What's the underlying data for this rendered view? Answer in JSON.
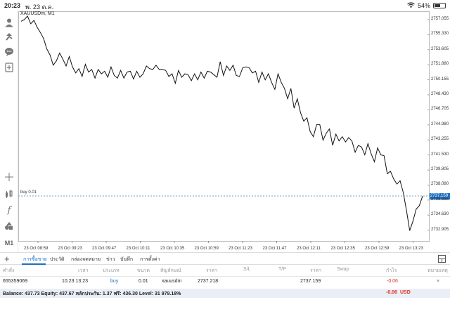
{
  "status_bar": {
    "time": "20:23",
    "date": "พ. 23 ต.ค.",
    "battery": "54%",
    "battery_level": 0.54
  },
  "chart": {
    "symbol": "XAUUSDm, M1",
    "position_label": "buy 0.01",
    "current_price": "2737.159",
    "entry_price": 2737.218,
    "price_ticks": [
      "2757.055",
      "2755.330",
      "2753.605",
      "2751.880",
      "2750.155",
      "2748.430",
      "2746.705",
      "2744.980",
      "2743.255",
      "2741.530",
      "2739.805",
      "2738.080",
      "2736.355",
      "2734.630",
      "2732.905"
    ],
    "time_ticks": [
      "23 Oct 08:59",
      "23 Oct 09:23",
      "23 Oct 09:47",
      "23 Oct 10:11",
      "23 Oct 10:35",
      "23 Oct 10:59",
      "23 Oct 11:23",
      "23 Oct 11:47",
      "23 Oct 12:11",
      "23 Oct 12:35",
      "23 Oct 12:59",
      "23 Oct 13:23"
    ],
    "line_color": "#111111",
    "position_line_color": "#7a9cc0",
    "price_series": [
      2757.5,
      2757.7,
      2758.1,
      2757.2,
      2757.6,
      2756.8,
      2756.2,
      2755.5,
      2754.3,
      2753.6,
      2752.4,
      2752.9,
      2753.8,
      2753.1,
      2752.3,
      2753.4,
      2752.2,
      2751.5,
      2752.0,
      2751.1,
      2752.5,
      2751.6,
      2751.9,
      2750.9,
      2751.9,
      2751.4,
      2751.7,
      2751.0,
      2752.2,
      2751.2,
      2750.9,
      2751.8,
      2750.9,
      2751.6,
      2751.7,
      2750.8,
      2751.7,
      2751.0,
      2751.4,
      2752.3,
      2752.0,
      2751.9,
      2752.4,
      2751.9,
      2751.9,
      2751.8,
      2751.1,
      2751.4,
      2750.3,
      2751.8,
      2751.0,
      2751.4,
      2751.3,
      2750.6,
      2751.4,
      2750.7,
      2751.6,
      2750.9,
      2751.7,
      2751.6,
      2751.3,
      2751.0,
      2752.8,
      2751.2,
      2752.3,
      2751.8,
      2752.4,
      2751.2,
      2751.1,
      2752.1,
      2752.2,
      2752.1,
      2751.5,
      2751.7,
      2750.4,
      2751.6,
      2750.7,
      2751.4,
      2750.4,
      2749.6,
      2751.4,
      2750.4,
      2749.7,
      2748.5,
      2749.7,
      2747.4,
      2748.5,
      2746.9,
      2745.9,
      2746.3,
      2744.7,
      2744.1,
      2745.5,
      2745.5,
      2743.7,
      2744.5,
      2745.0,
      2743.1,
      2744.4,
      2743.6,
      2744.1,
      2743.5,
      2744.0,
      2743.6,
      2742.3,
      2743.1,
      2742.9,
      2742.0,
      2743.3,
      2742.1,
      2741.2,
      2742.8,
      2742.0,
      2741.9,
      2739.8,
      2740.1,
      2739.2,
      2738.6,
      2739.0,
      2737.6,
      2735.5,
      2733.2,
      2734.3,
      2735.7,
      2736.1,
      2737.2
    ],
    "price_min": 2732.0,
    "price_max": 2758.5
  },
  "tabs": [
    {
      "label": "การซื้อขาย",
      "active": true
    },
    {
      "label": "ประวัติ",
      "active": false
    },
    {
      "label": "กล่องจดหมาย",
      "active": false
    },
    {
      "label": "ข่าว",
      "active": false
    },
    {
      "label": "บันทึก",
      "active": false
    },
    {
      "label": "การตั้งค่า",
      "active": false
    }
  ],
  "table": {
    "headers": {
      "order": "คำสั่ง",
      "time": "เวลา",
      "type": "ประเภท",
      "size": "ขนาด",
      "symbol": "สัญลักษณ์",
      "price": "ราคา",
      "sl": "S/L",
      "tp": "T/P",
      "current_price": "ราคา",
      "swap": "Swap",
      "profit": "กำไร",
      "note": "หมายเหตุ"
    },
    "row": {
      "order": "655359069",
      "time": "10.23 13:23",
      "type": "buy",
      "size": "0.01",
      "symbol": "xauusdm",
      "price": "2737.218",
      "current_price": "2737.159",
      "profit": "-0.06"
    },
    "balance": "Balance: 437.73 Equity: 437.67 หลักประกัน: 1.37 ฟรี: 436.30 Level: 31 979.18%",
    "total_profit": "-0.06",
    "currency": "USD"
  },
  "colors": {
    "accent": "#1d6fc1",
    "loss": "#e0301e"
  }
}
